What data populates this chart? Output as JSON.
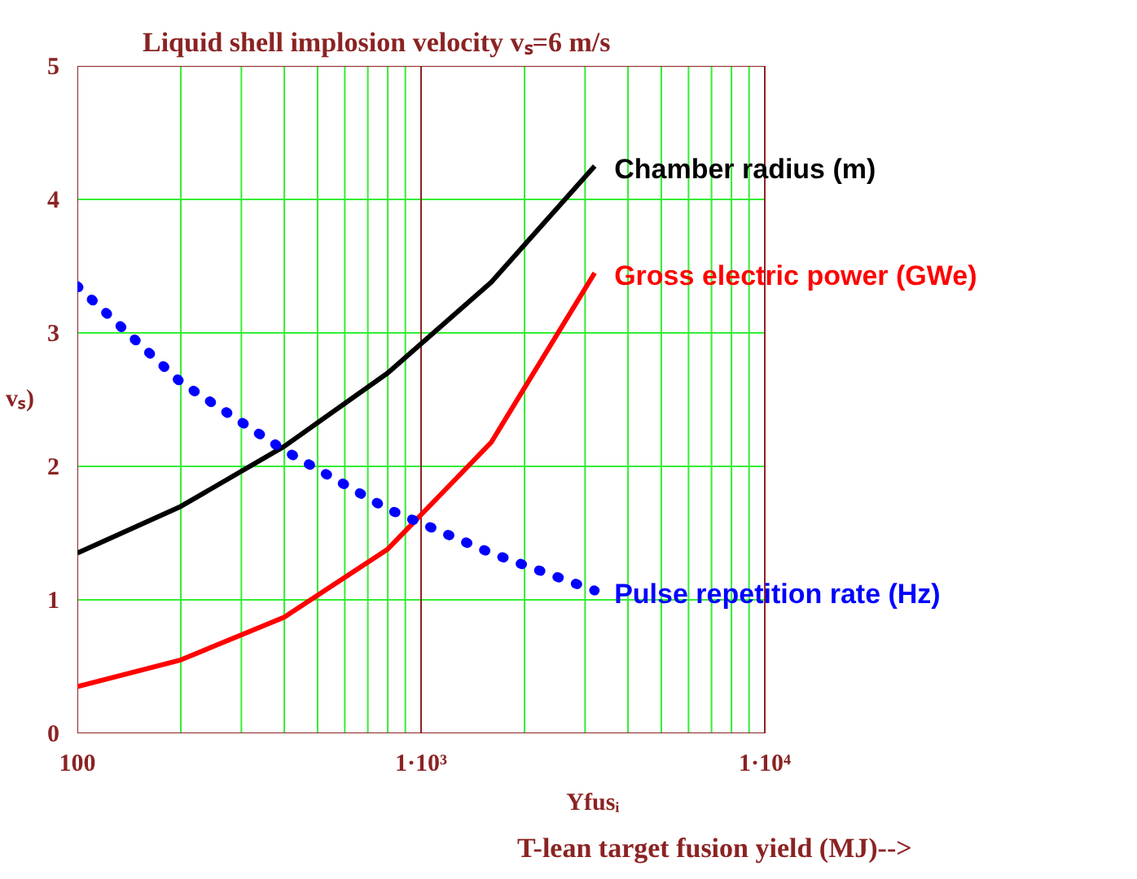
{
  "chart_data": {
    "type": "line",
    "title": "Liquid shell implosion velocity vₛ=6 m/s",
    "xlabel": "Yfusᵢ",
    "ylabel": "vₛ)",
    "annotations": [
      "T-lean target fusion yield (MJ)-->"
    ],
    "x": [
      100,
      200,
      400,
      800,
      1600,
      3200
    ],
    "log": "x",
    "xlim": [
      100,
      10000
    ],
    "ylim": [
      0,
      5
    ],
    "xticks": [
      100,
      {
        "value": 1000,
        "label": "1·10³"
      },
      {
        "value": 10000,
        "label": "1·10⁴"
      }
    ],
    "yticks": [
      0,
      1,
      2,
      3,
      4,
      5
    ],
    "grid": true,
    "ref_lines": [
      {
        "axis": "x",
        "value": 1000,
        "label": null,
        "color": "#8b2323"
      }
    ],
    "series": [
      {
        "name": "Chamber radius (m)",
        "color": "#000000",
        "values": [
          1.35,
          1.7,
          2.15,
          2.7,
          3.38,
          4.25
        ]
      },
      {
        "name": "Gross electric power (GWe)",
        "color": "#ff0000",
        "values": [
          0.35,
          0.55,
          0.87,
          1.38,
          2.18,
          3.45
        ]
      },
      {
        "name": "Pulse repetition rate (Hz)",
        "color": "#0000ff",
        "line_style": "dotted",
        "values": [
          3.35,
          2.63,
          2.12,
          1.68,
          1.35,
          1.07
        ]
      }
    ]
  }
}
